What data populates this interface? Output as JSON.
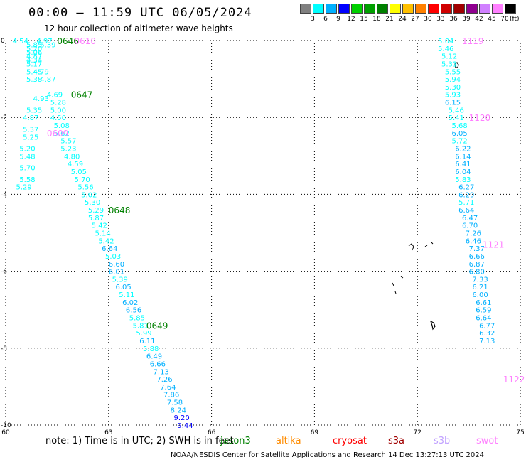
{
  "header": {
    "title": "00:00 – 11:59 UTC 06/05/2024",
    "subtitle": "12 hour collection of altimeter wave heights"
  },
  "colorbar": {
    "colors": [
      "#808080",
      "#00ffff",
      "#00b0ff",
      "#0000ff",
      "#00d000",
      "#00a000",
      "#008000",
      "#ffff00",
      "#ffc000",
      "#ff8000",
      "#ff0000",
      "#d00000",
      "#a00000",
      "#900090",
      "#d080ff",
      "#ff80ff",
      "#000000"
    ],
    "labels": [
      "3",
      "6",
      "9",
      "12",
      "15",
      "18",
      "21",
      "24",
      "27",
      "30",
      "33",
      "36",
      "39",
      "42",
      "45",
      "70"
    ],
    "unit": "(ft)"
  },
  "footer": {
    "note": "note:  1) Time is in UTC; 2) SWH is in feet",
    "satellites": [
      {
        "name": "jason3",
        "color": "#008000"
      },
      {
        "name": "altika",
        "color": "#ff8c00"
      },
      {
        "name": "cryosat",
        "color": "#ff0000"
      },
      {
        "name": "s3a",
        "color": "#a00000"
      },
      {
        "name": "s3b",
        "color": "#c0a0ff"
      },
      {
        "name": "swot",
        "color": "#ff80ff"
      }
    ],
    "credit": "NOAA/NESDIS Center for Satellite Applications and Research    14 Dec 13:27:13 UTC 2024"
  },
  "chart_data": {
    "type": "scatter",
    "title": "00:00 – 11:59 UTC 06/05/2024",
    "subtitle": "12 hour collection of altimeter wave heights",
    "xlim": [
      60,
      75
    ],
    "ylim": [
      -10,
      0
    ],
    "xticks": [
      "60",
      "63",
      "66",
      "69",
      "72",
      "75"
    ],
    "yticks": [
      "0",
      "-2",
      "-4",
      "-6",
      "-8",
      "-10"
    ],
    "grid": true,
    "tracks": [
      {
        "satellite": "jason3",
        "time_labels": [
          {
            "text": "0646",
            "x": 61.5,
            "y": 0.0
          },
          {
            "text": "0647",
            "x": 61.9,
            "y": -1.4
          },
          {
            "text": "0648",
            "x": 63.0,
            "y": -4.4
          },
          {
            "text": "0649",
            "x": 64.1,
            "y": -7.4
          }
        ],
        "points": [
          {
            "x": 60.2,
            "y": 0.0,
            "v": "4.54"
          },
          {
            "x": 60.9,
            "y": 0.0,
            "v": "4.97"
          },
          {
            "x": 60.6,
            "y": -0.1,
            "v": "5.85"
          },
          {
            "x": 61.0,
            "y": -0.1,
            "v": "5.39"
          },
          {
            "x": 60.6,
            "y": -0.2,
            "v": "5.20"
          },
          {
            "x": 60.6,
            "y": -0.3,
            "v": "5.06"
          },
          {
            "x": 60.6,
            "y": -0.4,
            "v": "4.87"
          },
          {
            "x": 60.6,
            "y": -0.5,
            "v": "4.34"
          },
          {
            "x": 60.6,
            "y": -0.6,
            "v": "5.17"
          },
          {
            "x": 60.8,
            "y": -0.8,
            "v": "4.79"
          },
          {
            "x": 60.6,
            "y": -0.8,
            "v": "5.45"
          },
          {
            "x": 61.0,
            "y": -1.0,
            "v": "4.87"
          },
          {
            "x": 60.6,
            "y": -1.0,
            "v": "5.38"
          },
          {
            "x": 61.2,
            "y": -1.4,
            "v": "4.69"
          },
          {
            "x": 60.8,
            "y": -1.5,
            "v": "4.93"
          },
          {
            "x": 61.3,
            "y": -1.6,
            "v": "5.28"
          },
          {
            "x": 60.6,
            "y": -1.8,
            "v": "5.35"
          },
          {
            "x": 61.3,
            "y": -1.8,
            "v": "5.00"
          },
          {
            "x": 60.5,
            "y": -2.0,
            "v": "4.87"
          },
          {
            "x": 61.3,
            "y": -2.0,
            "v": "4.50"
          },
          {
            "x": 61.4,
            "y": -2.2,
            "v": "5.08"
          },
          {
            "x": 60.5,
            "y": -2.3,
            "v": "5.37"
          },
          {
            "x": 61.4,
            "y": -2.4,
            "v": "5.62"
          },
          {
            "x": 60.5,
            "y": -2.5,
            "v": "5.25"
          },
          {
            "x": 61.6,
            "y": -2.6,
            "v": "5.57"
          },
          {
            "x": 60.4,
            "y": -2.8,
            "v": "5.20"
          },
          {
            "x": 61.6,
            "y": -2.8,
            "v": "5.23"
          },
          {
            "x": 60.4,
            "y": -3.0,
            "v": "5.48"
          },
          {
            "x": 61.7,
            "y": -3.0,
            "v": "4.80"
          },
          {
            "x": 60.4,
            "y": -3.3,
            "v": "5.70"
          },
          {
            "x": 61.8,
            "y": -3.2,
            "v": "4.59"
          },
          {
            "x": 61.9,
            "y": -3.4,
            "v": "5.05"
          },
          {
            "x": 60.4,
            "y": -3.6,
            "v": "5.58"
          },
          {
            "x": 62.0,
            "y": -3.6,
            "v": "5.70"
          },
          {
            "x": 60.3,
            "y": -3.8,
            "v": "5.29"
          },
          {
            "x": 62.1,
            "y": -3.8,
            "v": "5.56"
          },
          {
            "x": 62.2,
            "y": -4.0,
            "v": "5.02"
          },
          {
            "x": 62.3,
            "y": -4.2,
            "v": "5.30"
          },
          {
            "x": 62.4,
            "y": -4.4,
            "v": "5.29"
          },
          {
            "x": 62.4,
            "y": -4.6,
            "v": "5.87"
          },
          {
            "x": 62.5,
            "y": -4.8,
            "v": "5.42"
          },
          {
            "x": 62.6,
            "y": -5.0,
            "v": "5.14"
          },
          {
            "x": 62.7,
            "y": -5.2,
            "v": "5.42"
          },
          {
            "x": 62.8,
            "y": -5.4,
            "v": "6.64"
          },
          {
            "x": 62.9,
            "y": -5.6,
            "v": "5.03"
          },
          {
            "x": 63.0,
            "y": -5.8,
            "v": "6.60"
          },
          {
            "x": 63.0,
            "y": -6.0,
            "v": "6.01"
          },
          {
            "x": 63.1,
            "y": -6.2,
            "v": "5.39"
          },
          {
            "x": 63.2,
            "y": -6.4,
            "v": "6.05"
          },
          {
            "x": 63.3,
            "y": -6.6,
            "v": "5.11"
          },
          {
            "x": 63.4,
            "y": -6.8,
            "v": "6.02"
          },
          {
            "x": 63.5,
            "y": -7.0,
            "v": "6.56"
          },
          {
            "x": 63.6,
            "y": -7.2,
            "v": "5.85"
          },
          {
            "x": 63.7,
            "y": -7.4,
            "v": "5.81"
          },
          {
            "x": 63.8,
            "y": -7.6,
            "v": "5.99"
          },
          {
            "x": 63.9,
            "y": -7.8,
            "v": "6.11"
          },
          {
            "x": 64.0,
            "y": -8.0,
            "v": "5.88"
          },
          {
            "x": 64.1,
            "y": -8.2,
            "v": "6.49"
          },
          {
            "x": 64.2,
            "y": -8.4,
            "v": "6.66"
          },
          {
            "x": 64.3,
            "y": -8.6,
            "v": "7.13"
          },
          {
            "x": 64.4,
            "y": -8.8,
            "v": "7.26"
          },
          {
            "x": 64.5,
            "y": -9.0,
            "v": "7.64"
          },
          {
            "x": 64.6,
            "y": -9.2,
            "v": "7.86"
          },
          {
            "x": 64.7,
            "y": -9.4,
            "v": "7.58"
          },
          {
            "x": 64.8,
            "y": -9.6,
            "v": "8.24"
          },
          {
            "x": 64.9,
            "y": -9.8,
            "v": "9.20"
          },
          {
            "x": 65.0,
            "y": -10.0,
            "v": "9.44"
          }
        ]
      },
      {
        "satellite": "swot",
        "time_labels": [
          {
            "text": "0610",
            "x": 62.0,
            "y": 0.0
          },
          {
            "text": "0609",
            "x": 61.2,
            "y": -2.4
          },
          {
            "text": "1119",
            "x": 73.3,
            "y": 0.0
          },
          {
            "text": "1120",
            "x": 73.5,
            "y": -2.0
          },
          {
            "text": "1121",
            "x": 73.9,
            "y": -5.3
          },
          {
            "text": "1122",
            "x": 74.5,
            "y": -8.8
          }
        ],
        "points": [
          {
            "x": 72.6,
            "y": 0.0,
            "v": "5.04"
          },
          {
            "x": 72.6,
            "y": -0.2,
            "v": "5.46"
          },
          {
            "x": 72.7,
            "y": -0.4,
            "v": "5.12"
          },
          {
            "x": 72.7,
            "y": -0.6,
            "v": "5.31"
          },
          {
            "x": 72.8,
            "y": -0.8,
            "v": "5.55"
          },
          {
            "x": 72.8,
            "y": -1.0,
            "v": "5.94"
          },
          {
            "x": 72.8,
            "y": -1.2,
            "v": "5.30"
          },
          {
            "x": 72.8,
            "y": -1.4,
            "v": "5.93"
          },
          {
            "x": 72.8,
            "y": -1.6,
            "v": "6.15"
          },
          {
            "x": 72.9,
            "y": -1.8,
            "v": "5.46"
          },
          {
            "x": 72.9,
            "y": -2.0,
            "v": "5.41"
          },
          {
            "x": 73.0,
            "y": -2.2,
            "v": "5.68"
          },
          {
            "x": 73.0,
            "y": -2.4,
            "v": "6.05"
          },
          {
            "x": 73.0,
            "y": -2.6,
            "v": "5.72"
          },
          {
            "x": 73.1,
            "y": -2.8,
            "v": "6.22"
          },
          {
            "x": 73.1,
            "y": -3.0,
            "v": "6.14"
          },
          {
            "x": 73.1,
            "y": -3.2,
            "v": "6.41"
          },
          {
            "x": 73.1,
            "y": -3.4,
            "v": "6.04"
          },
          {
            "x": 73.1,
            "y": -3.6,
            "v": "5.83"
          },
          {
            "x": 73.2,
            "y": -3.8,
            "v": "6.27"
          },
          {
            "x": 73.2,
            "y": -4.0,
            "v": "6.29"
          },
          {
            "x": 73.2,
            "y": -4.2,
            "v": "5.71"
          },
          {
            "x": 73.2,
            "y": -4.4,
            "v": "6.64"
          },
          {
            "x": 73.3,
            "y": -4.6,
            "v": "6.47"
          },
          {
            "x": 73.3,
            "y": -4.8,
            "v": "6.70"
          },
          {
            "x": 73.4,
            "y": -5.0,
            "v": "7.26"
          },
          {
            "x": 73.4,
            "y": -5.2,
            "v": "6.46"
          },
          {
            "x": 73.5,
            "y": -5.4,
            "v": "7.37"
          },
          {
            "x": 73.5,
            "y": -5.6,
            "v": "6.66"
          },
          {
            "x": 73.5,
            "y": -5.8,
            "v": "6.87"
          },
          {
            "x": 73.5,
            "y": -6.0,
            "v": "6.80"
          },
          {
            "x": 73.6,
            "y": -6.2,
            "v": "7.33"
          },
          {
            "x": 73.6,
            "y": -6.4,
            "v": "6.21"
          },
          {
            "x": 73.6,
            "y": -6.6,
            "v": "6.00"
          },
          {
            "x": 73.7,
            "y": -6.8,
            "v": "6.61"
          },
          {
            "x": 73.7,
            "y": -7.0,
            "v": "6.59"
          },
          {
            "x": 73.7,
            "y": -7.2,
            "v": "6.64"
          },
          {
            "x": 73.8,
            "y": -7.4,
            "v": "6.77"
          },
          {
            "x": 73.8,
            "y": -7.6,
            "v": "6.32"
          },
          {
            "x": 73.8,
            "y": -7.8,
            "v": "7.13"
          }
        ]
      }
    ]
  }
}
